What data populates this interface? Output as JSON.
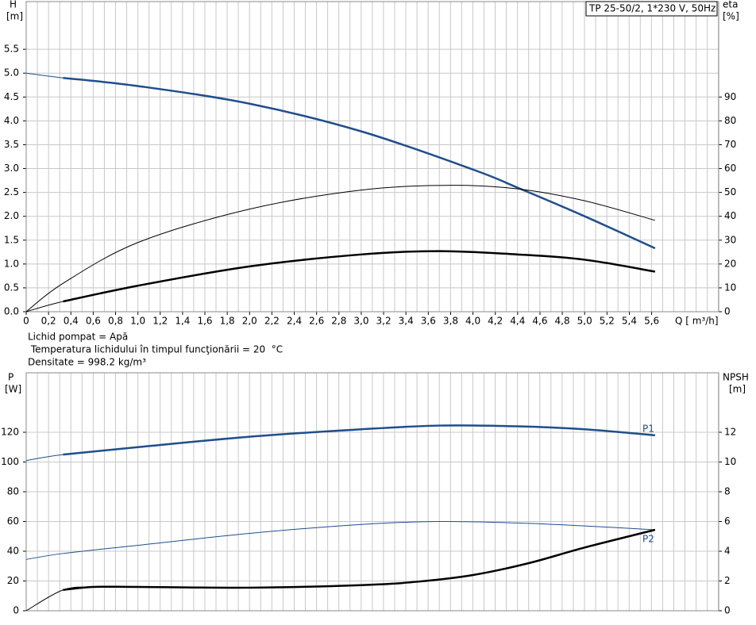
{
  "chart_data": [
    {
      "type": "line",
      "title": "TP 25-50/2, 1*230 V, 50Hz",
      "ylabel": "H",
      "yunit": "[m]",
      "y2label": "eta",
      "y2unit": "[%]",
      "xlabel": "Q [ m³/h]",
      "annotations": [
        "Lichid pompat = Apă",
        " Temperatura lichidului în timpul funcţionării = 20  °C",
        "Densitate = 998.2  kg/m³"
      ],
      "xlim": [
        0,
        6.2
      ],
      "xticks": [
        0,
        {
          "value": 0.2,
          "label": "0,2"
        },
        {
          "value": 0.4,
          "label": "0,4"
        },
        {
          "value": 0.6,
          "label": "0,6"
        },
        {
          "value": 0.8,
          "label": "0,8"
        },
        {
          "value": 1.0,
          "label": "1,0"
        },
        {
          "value": 1.2,
          "label": "1,2"
        },
        {
          "value": 1.4,
          "label": "1,4"
        },
        {
          "value": 1.6,
          "label": "1,6"
        },
        {
          "value": 1.8,
          "label": "1,8"
        },
        {
          "value": 2.0,
          "label": "2,0"
        },
        {
          "value": 2.2,
          "label": "2,2"
        },
        {
          "value": 2.4,
          "label": "2,4"
        },
        {
          "value": 2.6,
          "label": "2,6"
        },
        {
          "value": 2.8,
          "label": "2,8"
        },
        {
          "value": 3.0,
          "label": "3,0"
        },
        {
          "value": 3.2,
          "label": "3,2"
        },
        {
          "value": 3.4,
          "label": "3,4"
        },
        {
          "value": 3.6,
          "label": "3,6"
        },
        {
          "value": 3.8,
          "label": "3,8"
        },
        {
          "value": 4.0,
          "label": "4,0"
        },
        {
          "value": 4.2,
          "label": "4,2"
        },
        {
          "value": 4.4,
          "label": "4,4"
        },
        {
          "value": 4.6,
          "label": "4,6"
        },
        {
          "value": 4.8,
          "label": "4,8"
        },
        {
          "value": 5.0,
          "label": "5,0"
        },
        {
          "value": 5.2,
          "label": "5,2"
        },
        {
          "value": 5.4,
          "label": "5,4"
        },
        {
          "value": 5.6,
          "label": "5,6"
        }
      ],
      "ylim": [
        0,
        6.5
      ],
      "yticks": [
        {
          "value": 0,
          "label": "0.0"
        },
        0.5,
        {
          "value": 1,
          "label": "1.0"
        },
        1.5,
        {
          "value": 2,
          "label": "2.0"
        },
        2.5,
        {
          "value": 3,
          "label": "3.0"
        },
        3.5,
        {
          "value": 4,
          "label": "4.0"
        },
        4.5,
        {
          "value": 5,
          "label": "5.0"
        },
        5.5
      ],
      "y2lim": [
        0,
        130
      ],
      "y2ticks": [
        0,
        10,
        20,
        30,
        40,
        50,
        60,
        70,
        80,
        90
      ],
      "grid": true,
      "series": [
        {
          "color": "#1f4e8c",
          "width": 2.5,
          "x": [
            0,
            0.33,
            1,
            2,
            3,
            4,
            4.4,
            5,
            5.63
          ],
          "values": [
            5.0,
            4.9,
            4.73,
            4.36,
            3.78,
            2.98,
            2.6,
            2.0,
            1.33
          ]
        },
        {
          "color": "#000000",
          "width": 1,
          "axis": "y2",
          "x": [
            0,
            0.33,
            1,
            2,
            3,
            3.8,
            4.4,
            5,
            5.63
          ],
          "values": [
            0,
            11.9,
            29,
            43,
            51,
            53,
            51.5,
            46.5,
            38.3
          ]
        },
        {
          "color": "#000000",
          "width": 2.5,
          "axis": "y2",
          "x": [
            0,
            0.33,
            1,
            2,
            3,
            3.7,
            4.4,
            5,
            5.63
          ],
          "values": [
            0,
            4.3,
            10.9,
            19,
            24,
            25.4,
            24,
            21.8,
            16.8
          ]
        }
      ]
    },
    {
      "type": "line",
      "ylabel": "P",
      "yunit": "[W]",
      "y2label": "NPSH",
      "y2unit": "[m]",
      "xlim": [
        0,
        6.2
      ],
      "ylim": [
        0,
        160
      ],
      "yticks": [
        0,
        20,
        40,
        60,
        80,
        100,
        120
      ],
      "y2lim": [
        0,
        16
      ],
      "y2ticks": [
        0,
        2,
        4,
        6,
        8,
        10,
        12
      ],
      "grid": true,
      "series": [
        {
          "name": "P1",
          "color": "#1f4e8c",
          "width": 2.5,
          "x": [
            0,
            0.33,
            1,
            2,
            3,
            3.7,
            4.4,
            5,
            5.63
          ],
          "values": [
            101,
            105,
            110,
            117,
            122,
            124.5,
            124,
            122,
            118
          ]
        },
        {
          "name": "P2",
          "color": "#1f4e8c",
          "width": 1,
          "x": [
            0,
            0.33,
            1,
            2,
            3,
            3.7,
            4.4,
            5,
            5.63
          ],
          "values": [
            34.5,
            38.5,
            44,
            52,
            58,
            60,
            59,
            57,
            54.4
          ]
        },
        {
          "color": "#000000",
          "width": 2.5,
          "axis": "y2",
          "x": [
            0,
            0.33,
            0.6,
            1,
            2,
            3,
            3.5,
            4,
            4.5,
            5,
            5.63
          ],
          "values": [
            0,
            1.4,
            1.6,
            1.6,
            1.55,
            1.72,
            1.95,
            2.4,
            3.2,
            4.25,
            5.44
          ]
        }
      ]
    }
  ]
}
